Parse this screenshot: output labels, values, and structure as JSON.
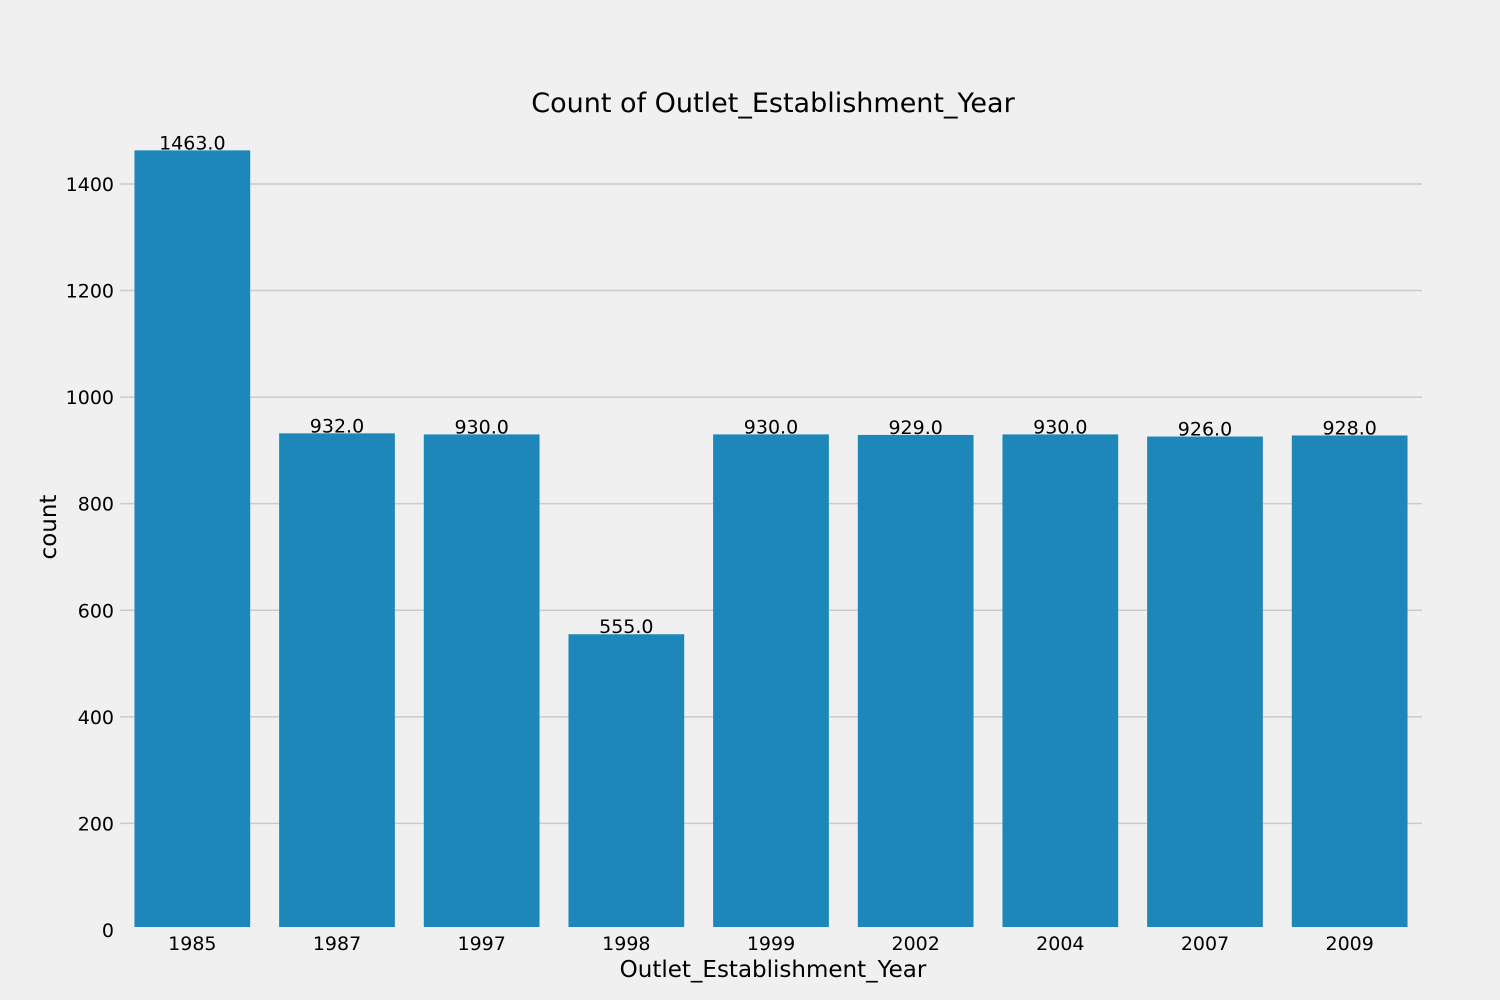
{
  "chart_data": {
    "type": "bar",
    "title": "Count of Outlet_Establishment_Year",
    "xlabel": "Outlet_Establishment_Year",
    "ylabel": "count",
    "categories": [
      "1985",
      "1987",
      "1997",
      "1998",
      "1999",
      "2002",
      "2004",
      "2007",
      "2009"
    ],
    "values": [
      1463,
      932,
      930,
      555,
      930,
      929,
      930,
      926,
      928
    ],
    "value_labels": [
      "1463.0",
      "932.0",
      "930.0",
      "555.0",
      "930.0",
      "929.0",
      "930.0",
      "926.0",
      "928.0"
    ],
    "ylim": [
      0,
      1520
    ],
    "yticks": [
      0,
      200,
      400,
      600,
      800,
      1000,
      1200,
      1400
    ],
    "ytick_labels": [
      "0",
      "200",
      "400",
      "600",
      "800",
      "1000",
      "1200",
      "1400"
    ],
    "grid": "horizontal",
    "colors": {
      "background": "#f0f0f0",
      "bar": "#1d87ba",
      "grid": "#cbcbcb",
      "text": "#000000"
    }
  }
}
